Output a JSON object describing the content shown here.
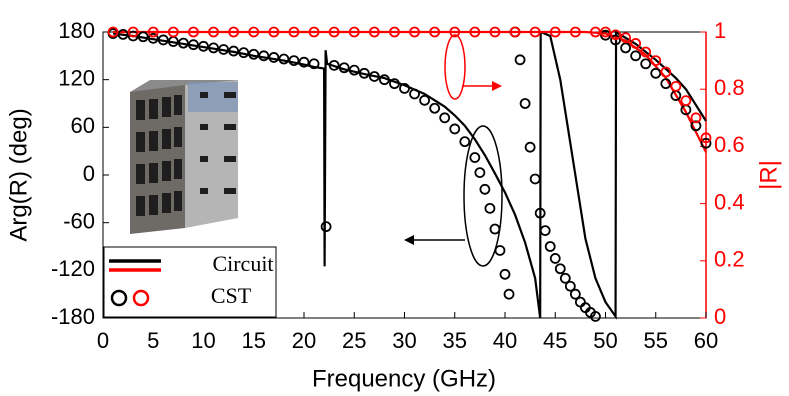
{
  "chart_data": {
    "type": "line",
    "xlabel": "Frequency (GHz)",
    "ylabel": "Arg(R) (deg)",
    "y2label": "|R|",
    "xlim": [
      0,
      60
    ],
    "xticks": [
      0,
      5,
      10,
      15,
      20,
      25,
      30,
      35,
      40,
      45,
      50,
      55,
      60
    ],
    "ylim": [
      -180,
      180
    ],
    "yticks": [
      -180,
      -120,
      -60,
      0,
      60,
      120,
      180
    ],
    "y2lim": [
      0,
      1
    ],
    "y2ticks": [
      0,
      0.2,
      0.4,
      0.6,
      0.8,
      1
    ],
    "grid": false,
    "legend": [
      "Circuit",
      "CST"
    ],
    "legend_position": "lower left",
    "series": [
      {
        "style": "line",
        "legend": 0,
        "color": "#000000",
        "x": [
          1,
          3,
          5,
          8,
          10,
          13,
          15,
          18,
          20,
          21,
          22,
          22.05,
          22.15,
          22.3,
          24,
          26,
          28,
          30,
          32,
          34,
          35,
          36,
          37,
          38,
          39,
          40,
          41,
          42,
          43,
          43.5,
          43.55,
          44.5,
          45.5,
          46,
          46.5,
          47,
          47.5,
          48,
          49,
          50,
          51,
          51.05,
          53,
          55,
          57,
          58,
          59,
          60
        ],
        "values": [
          178,
          175,
          171,
          165,
          161,
          155,
          150,
          144,
          139,
          136,
          134,
          -115,
          157,
          140,
          133,
          127,
          122,
          113,
          102,
          86,
          75,
          62,
          45,
          25,
          2,
          -22,
          -50,
          -85,
          -130,
          -180,
          180,
          175,
          120,
          80,
          40,
          0,
          -40,
          -80,
          -130,
          -160,
          -178,
          180,
          165,
          145,
          122,
          108,
          88,
          68
        ]
      },
      {
        "style": "line",
        "legend": 0,
        "axis": "y2",
        "color": "#ff0000",
        "x": [
          1,
          10,
          20,
          30,
          40,
          48,
          50,
          52,
          54,
          56,
          58,
          60
        ],
        "values": [
          1,
          1,
          1,
          1,
          1,
          1,
          0.995,
          0.97,
          0.92,
          0.84,
          0.72,
          0.58
        ]
      },
      {
        "style": "marker",
        "legend": 1,
        "color": "#000000",
        "x": [
          1,
          2,
          3,
          4,
          5,
          6,
          7,
          8,
          9,
          10,
          11,
          12,
          13,
          14,
          15,
          16,
          17,
          18,
          19,
          20,
          21,
          22.2,
          23,
          24,
          25,
          26,
          27,
          28,
          29,
          30,
          31,
          32,
          33,
          34,
          35,
          36,
          37,
          37.5,
          38,
          38.5,
          39,
          39.5,
          40,
          40.4,
          41,
          41.5,
          42,
          42.5,
          43,
          43.5,
          44,
          44.5,
          45,
          45.5,
          46,
          46.5,
          47,
          47.5,
          48,
          48.5,
          49,
          50,
          51,
          52,
          53,
          54,
          55,
          56,
          57,
          58,
          59,
          60
        ],
        "values": [
          178,
          177,
          175,
          174,
          172,
          170,
          168,
          166,
          164,
          162,
          160,
          158,
          156,
          154,
          152,
          150,
          148,
          146,
          144,
          142,
          140,
          -65,
          138,
          135,
          132,
          128,
          124,
          120,
          115,
          109,
          102,
          94,
          84,
          72,
          58,
          42,
          22,
          3,
          -18,
          -42,
          -68,
          -95,
          -125,
          -150,
          180,
          145,
          90,
          35,
          -5,
          -48,
          -70,
          -90,
          -105,
          -118,
          -130,
          -140,
          -150,
          -160,
          -167,
          -173,
          -178,
          176,
          170,
          160,
          150,
          140,
          128,
          115,
          100,
          82,
          62,
          40
        ]
      },
      {
        "style": "marker",
        "legend": 1,
        "axis": "y2",
        "color": "#ff0000",
        "x": [
          1,
          3,
          5,
          7,
          9,
          11,
          13,
          15,
          17,
          19,
          21,
          23,
          25,
          27,
          29,
          31,
          33,
          35,
          37,
          39,
          41,
          43,
          45,
          47,
          49,
          50,
          51,
          52,
          53,
          54,
          55,
          56,
          57,
          58,
          59,
          60
        ],
        "values": [
          1,
          1,
          1,
          1,
          1,
          1,
          1,
          1,
          1,
          1,
          1,
          1,
          1,
          1,
          1,
          1,
          1,
          1,
          1,
          1,
          1,
          1,
          1,
          1,
          1,
          1,
          0.99,
          0.98,
          0.96,
          0.93,
          0.9,
          0.86,
          0.81,
          0.76,
          0.7,
          0.63
        ]
      }
    ]
  }
}
